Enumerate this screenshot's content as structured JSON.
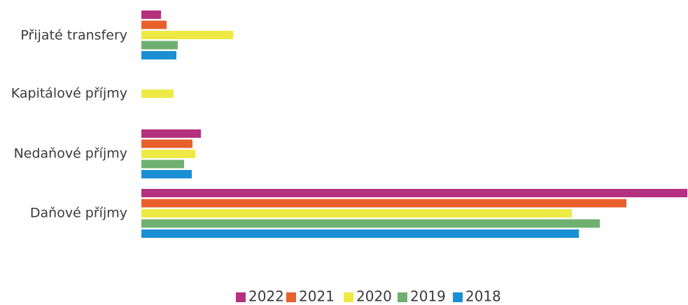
{
  "chart_data": {
    "type": "bar",
    "orientation": "horizontal",
    "title": "",
    "xlabel": "",
    "ylabel": "",
    "categories": [
      "Přijaté transfery",
      "Kapitálové příjmy",
      "Nedaňové příjmy",
      "Daňové příjmy"
    ],
    "series": [
      {
        "name": "2022",
        "color": "#b5307e",
        "values": [
          28,
          0,
          85,
          780
        ]
      },
      {
        "name": "2021",
        "color": "#e8602a",
        "values": [
          36,
          0,
          73,
          693
        ]
      },
      {
        "name": "2020",
        "color": "#eeea45",
        "values": [
          131,
          46,
          77,
          615
        ]
      },
      {
        "name": "2019",
        "color": "#6fb070",
        "values": [
          52,
          0,
          61,
          655
        ]
      },
      {
        "name": "2018",
        "color": "#1b8fd4",
        "values": [
          50,
          0,
          72,
          625
        ]
      }
    ],
    "xlim": [
      0,
      780
    ],
    "grid": false,
    "legend": "bottom"
  }
}
